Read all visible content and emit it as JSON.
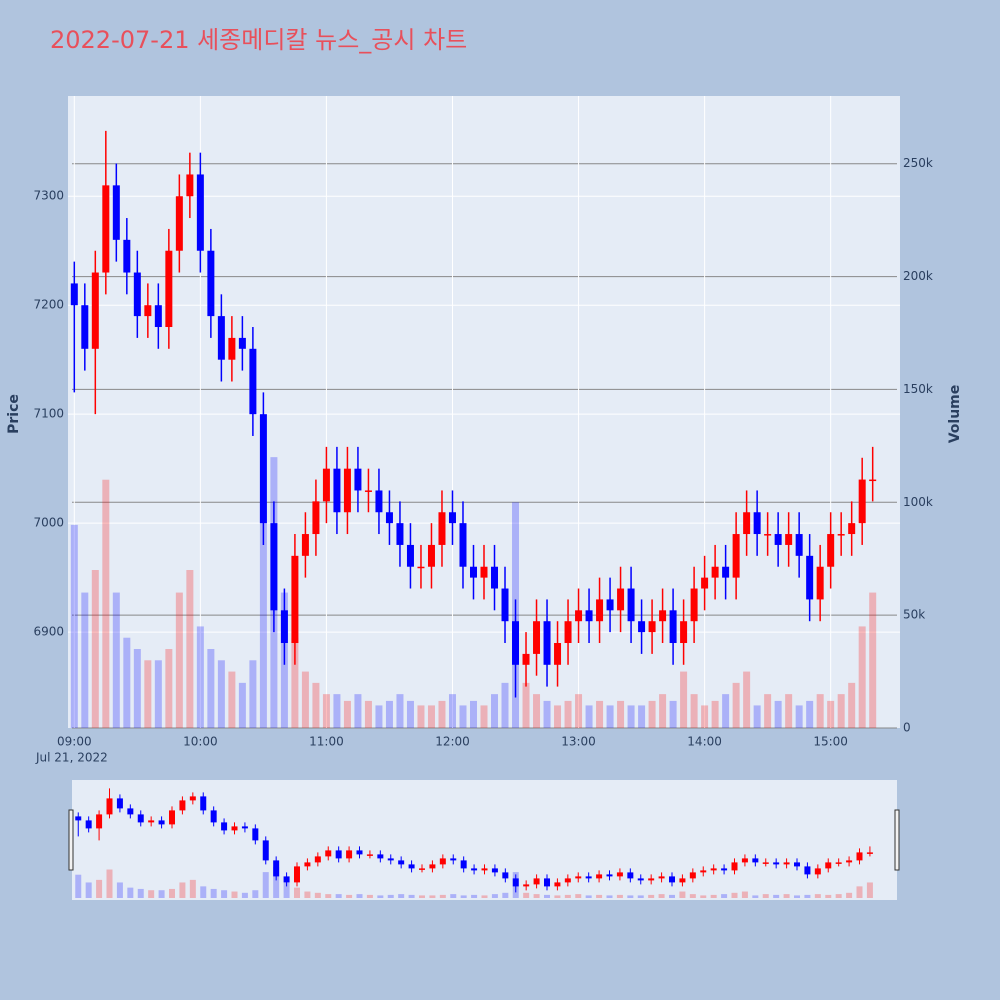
{
  "chart_data": {
    "type": "candlestick",
    "title": "2022-07-21 세종메디칼 뉴스_공시 차트",
    "ylabel": "Price",
    "y2label": "Volume",
    "x_date_label": "Jul 21, 2022",
    "x": [
      "09:00",
      "09:05",
      "09:10",
      "09:15",
      "09:20",
      "09:25",
      "09:30",
      "09:35",
      "09:40",
      "09:45",
      "09:50",
      "09:55",
      "10:00",
      "10:05",
      "10:10",
      "10:15",
      "10:20",
      "10:25",
      "10:30",
      "10:35",
      "10:40",
      "10:45",
      "10:50",
      "10:55",
      "11:00",
      "11:05",
      "11:10",
      "11:15",
      "11:20",
      "11:25",
      "11:30",
      "11:35",
      "11:40",
      "11:45",
      "11:50",
      "11:55",
      "12:00",
      "12:05",
      "12:10",
      "12:15",
      "12:20",
      "12:25",
      "12:30",
      "12:35",
      "12:40",
      "12:45",
      "12:50",
      "12:55",
      "13:00",
      "13:05",
      "13:10",
      "13:15",
      "13:20",
      "13:25",
      "13:30",
      "13:35",
      "13:40",
      "13:45",
      "13:50",
      "13:55",
      "14:00",
      "14:05",
      "14:10",
      "14:15",
      "14:20",
      "14:25",
      "14:30",
      "14:35",
      "14:40",
      "14:45",
      "14:50",
      "14:55",
      "15:00",
      "15:05",
      "15:10",
      "15:15",
      "15:20"
    ],
    "open": [
      7220,
      7200,
      7160,
      7230,
      7310,
      7260,
      7230,
      7190,
      7200,
      7180,
      7250,
      7300,
      7320,
      7250,
      7190,
      7150,
      7170,
      7160,
      7100,
      7000,
      6920,
      6890,
      6970,
      6990,
      7020,
      7050,
      7010,
      7050,
      7030,
      7030,
      7010,
      7000,
      6980,
      6960,
      6960,
      6980,
      7010,
      7000,
      6960,
      6950,
      6960,
      6940,
      6910,
      6870,
      6880,
      6910,
      6870,
      6890,
      6910,
      6920,
      6910,
      6930,
      6920,
      6940,
      6910,
      6900,
      6910,
      6920,
      6890,
      6910,
      6940,
      6950,
      6960,
      6950,
      6990,
      7010,
      6990,
      6990,
      6980,
      6990,
      6970,
      6930,
      6960,
      6990,
      6990,
      7000,
      7040
    ],
    "high": [
      7240,
      7220,
      7250,
      7360,
      7330,
      7280,
      7250,
      7220,
      7220,
      7270,
      7320,
      7340,
      7340,
      7270,
      7210,
      7190,
      7190,
      7180,
      7120,
      7020,
      6940,
      6990,
      7010,
      7040,
      7070,
      7070,
      7070,
      7070,
      7050,
      7050,
      7030,
      7020,
      7000,
      6980,
      7000,
      7030,
      7030,
      7020,
      6980,
      6980,
      6980,
      6960,
      6930,
      6900,
      6930,
      6930,
      6910,
      6930,
      6940,
      6940,
      6950,
      6950,
      6960,
      6960,
      6930,
      6930,
      6940,
      6940,
      6930,
      6960,
      6970,
      6980,
      6980,
      7010,
      7030,
      7030,
      7010,
      7010,
      7010,
      7010,
      6990,
      6980,
      7010,
      7010,
      7020,
      7060,
      7070
    ],
    "low": [
      7120,
      7140,
      7100,
      7210,
      7240,
      7210,
      7170,
      7170,
      7160,
      7160,
      7230,
      7280,
      7230,
      7170,
      7130,
      7130,
      7140,
      7080,
      6980,
      6900,
      6870,
      6870,
      6950,
      6970,
      7000,
      6990,
      6990,
      7010,
      7010,
      6990,
      6980,
      6960,
      6940,
      6940,
      6940,
      6960,
      6980,
      6940,
      6930,
      6930,
      6920,
      6890,
      6840,
      6850,
      6860,
      6850,
      6850,
      6870,
      6890,
      6890,
      6890,
      6900,
      6900,
      6890,
      6880,
      6880,
      6890,
      6870,
      6870,
      6890,
      6920,
      6930,
      6930,
      6930,
      6970,
      6970,
      6970,
      6960,
      6960,
      6950,
      6910,
      6910,
      6940,
      6970,
      6970,
      6980,
      7020
    ],
    "close": [
      7200,
      7160,
      7230,
      7310,
      7260,
      7230,
      7190,
      7200,
      7180,
      7250,
      7300,
      7320,
      7250,
      7190,
      7150,
      7170,
      7160,
      7100,
      7000,
      6920,
      6890,
      6970,
      6990,
      7020,
      7050,
      7010,
      7050,
      7030,
      7030,
      7010,
      7000,
      6980,
      6960,
      6960,
      6980,
      7010,
      7000,
      6960,
      6950,
      6960,
      6940,
      6910,
      6870,
      6880,
      6910,
      6870,
      6890,
      6910,
      6920,
      6910,
      6930,
      6920,
      6940,
      6910,
      6900,
      6910,
      6920,
      6890,
      6910,
      6940,
      6950,
      6960,
      6950,
      6990,
      7010,
      6990,
      6990,
      6980,
      6990,
      6970,
      6930,
      6960,
      6990,
      6990,
      7000,
      7040,
      7040
    ],
    "volume": [
      90000,
      60000,
      70000,
      110000,
      60000,
      40000,
      35000,
      30000,
      30000,
      35000,
      60000,
      70000,
      45000,
      35000,
      30000,
      25000,
      20000,
      30000,
      100000,
      120000,
      60000,
      40000,
      25000,
      20000,
      15000,
      15000,
      12000,
      15000,
      12000,
      10000,
      12000,
      15000,
      12000,
      10000,
      10000,
      12000,
      15000,
      10000,
      12000,
      10000,
      15000,
      20000,
      100000,
      20000,
      15000,
      12000,
      10000,
      12000,
      15000,
      10000,
      12000,
      10000,
      12000,
      10000,
      10000,
      12000,
      15000,
      12000,
      25000,
      15000,
      10000,
      12000,
      15000,
      20000,
      25000,
      10000,
      15000,
      12000,
      15000,
      10000,
      12000,
      15000,
      12000,
      15000,
      20000,
      45000,
      60000
    ],
    "increasing_color": "#ff0000",
    "decreasing_color": "#0000ff",
    "xlim": [
      "08:57",
      "15:33"
    ],
    "xticks": [
      "09:00",
      "10:00",
      "11:00",
      "12:00",
      "13:00",
      "14:00",
      "15:00"
    ],
    "ylim": [
      6812,
      7392
    ],
    "yticks": [
      6900,
      7000,
      7100,
      7200,
      7300
    ],
    "y2lim": [
      0,
      280000
    ],
    "y2ticks": [
      0,
      {
        "value": 50000,
        "label": "50k"
      },
      {
        "value": 100000,
        "label": "100k"
      },
      {
        "value": 150000,
        "label": "150k"
      },
      {
        "value": 200000,
        "label": "200k"
      },
      {
        "value": 250000,
        "label": "250k"
      }
    ],
    "grid": true,
    "rangeslider": true
  }
}
